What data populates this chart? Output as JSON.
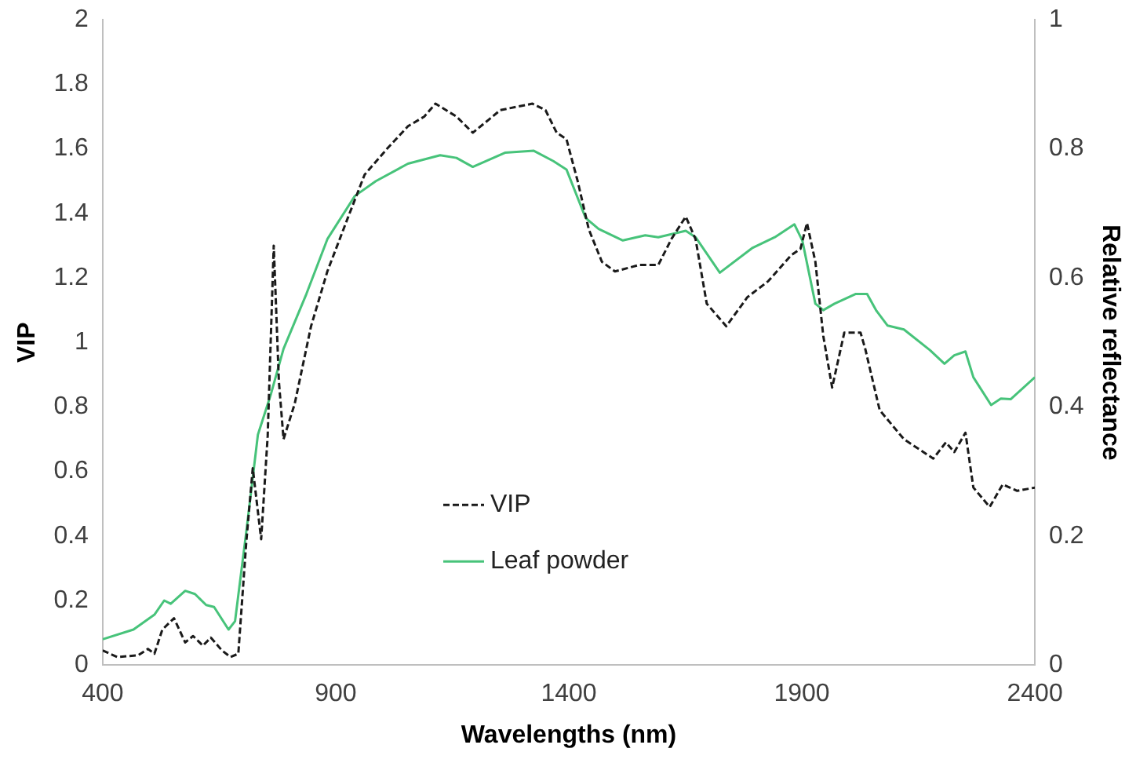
{
  "chart_data": {
    "type": "line",
    "xlabel": "Wavelengths (nm)",
    "ylabel": "VIP",
    "y2label": "Relative reflectance",
    "xlim": [
      400,
      2400
    ],
    "xticks": [
      400,
      900,
      1400,
      1900,
      2400
    ],
    "ylim": [
      0,
      2
    ],
    "yticks": [
      0,
      0.2,
      0.4,
      0.6,
      0.8,
      1,
      1.2,
      1.4,
      1.6,
      1.8,
      2
    ],
    "y2lim": [
      0,
      1
    ],
    "y2ticks": [
      0,
      0.2,
      0.4,
      0.6,
      0.8,
      1
    ],
    "grid": false,
    "legend": "bottom",
    "marker": "none",
    "series": [
      {
        "name": "VIP",
        "color": "#1a1a1a",
        "line_style": "dashed",
        "x": [
          400,
          431,
          476,
          497,
          511,
          528,
          553,
          577,
          594,
          615,
          632,
          656,
          674,
          691,
          708,
          722,
          740,
          754,
          767,
          778,
          788,
          812,
          847,
          882,
          927,
          962,
          1010,
          1055,
          1090,
          1114,
          1159,
          1194,
          1228,
          1253,
          1322,
          1350,
          1374,
          1395,
          1419,
          1443,
          1471,
          1499,
          1551,
          1592,
          1620,
          1651,
          1672,
          1696,
          1738,
          1783,
          1828,
          1877,
          1897,
          1911,
          1929,
          1946,
          1965,
          1991,
          2026,
          2036,
          2067,
          2119,
          2182,
          2209,
          2227,
          2251,
          2268,
          2303,
          2331,
          2362,
          2400
        ],
        "values": [
          0.045,
          0.025,
          0.03,
          0.05,
          0.035,
          0.11,
          0.145,
          0.07,
          0.09,
          0.06,
          0.085,
          0.045,
          0.025,
          0.035,
          0.38,
          0.61,
          0.39,
          0.71,
          1.3,
          0.88,
          0.7,
          0.81,
          1.05,
          1.22,
          1.39,
          1.52,
          1.6,
          1.67,
          1.7,
          1.74,
          1.7,
          1.65,
          1.69,
          1.72,
          1.74,
          1.72,
          1.65,
          1.63,
          1.5,
          1.35,
          1.25,
          1.22,
          1.24,
          1.24,
          1.32,
          1.39,
          1.32,
          1.12,
          1.05,
          1.14,
          1.19,
          1.27,
          1.29,
          1.37,
          1.25,
          1.02,
          0.86,
          1.03,
          1.03,
          0.98,
          0.79,
          0.7,
          0.64,
          0.69,
          0.66,
          0.72,
          0.55,
          0.49,
          0.56,
          0.54,
          0.55
        ]
      },
      {
        "name": "Leaf powder",
        "color": "#47c37a",
        "line_style": "solid",
        "axis": "y2",
        "x": [
          400,
          466,
          511,
          532,
          546,
          577,
          598,
          622,
          639,
          670,
          684,
          708,
          733,
          761,
          788,
          837,
          882,
          941,
          986,
          1055,
          1124,
          1159,
          1194,
          1263,
          1325,
          1367,
          1395,
          1436,
          1464,
          1516,
          1564,
          1592,
          1651,
          1672,
          1724,
          1793,
          1842,
          1884,
          1901,
          1929,
          1946,
          1970,
          2015,
          2040,
          2060,
          2084,
          2119,
          2175,
          2206,
          2227,
          2251,
          2268,
          2306,
          2327,
          2348,
          2400
        ],
        "values": [
          0.04,
          0.055,
          0.078,
          0.1,
          0.095,
          0.115,
          0.11,
          0.093,
          0.09,
          0.055,
          0.068,
          0.206,
          0.357,
          0.42,
          0.49,
          0.575,
          0.66,
          0.727,
          0.75,
          0.777,
          0.79,
          0.786,
          0.772,
          0.794,
          0.797,
          0.781,
          0.768,
          0.693,
          0.676,
          0.658,
          0.666,
          0.663,
          0.673,
          0.663,
          0.608,
          0.646,
          0.663,
          0.683,
          0.658,
          0.56,
          0.55,
          0.56,
          0.575,
          0.575,
          0.549,
          0.526,
          0.52,
          0.488,
          0.467,
          0.48,
          0.486,
          0.446,
          0.403,
          0.413,
          0.412,
          0.446
        ]
      }
    ]
  }
}
